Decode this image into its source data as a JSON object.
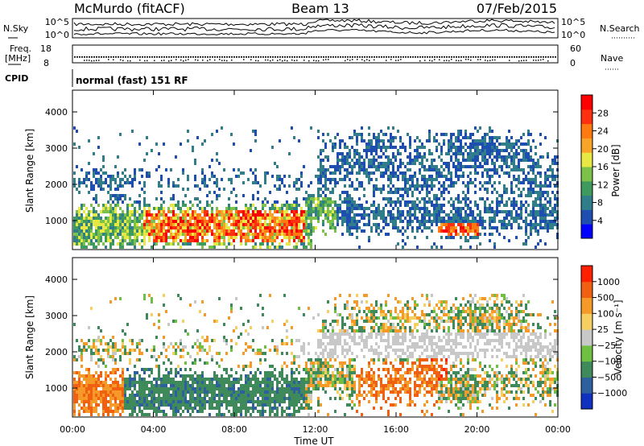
{
  "header": {
    "station": "McMurdo (fitACF)",
    "beam": "Beam 13",
    "date": "07/Feb/2015"
  },
  "strips": {
    "nsky_label": "N.Sky",
    "nsky_ticks": [
      "10^5",
      "10^0"
    ],
    "nsearch_label": "N.Search",
    "nsearch_ticks": [
      "10^5",
      "10^0"
    ],
    "freq_label": "Freq.",
    "freq_unit": "[MHz]",
    "freq_ticks": [
      "18",
      "8"
    ],
    "nave_label": "Nave",
    "nave_ticks": [
      "60",
      "0"
    ],
    "cpid_label": "CPID",
    "cpid_text": "normal (fast) 151 RF"
  },
  "chart_data": [
    {
      "type": "heatmap",
      "title": "",
      "xlabel": "Time UT",
      "ylabel": "Slant Range [km]",
      "xlim": [
        "00:00",
        "24:00"
      ],
      "ylim": [
        200,
        4600
      ],
      "x_ticks": [
        "00:00",
        "04:00",
        "08:00",
        "12:00",
        "16:00",
        "20:00",
        "00:00"
      ],
      "y_ticks": [
        1000,
        2000,
        3000,
        4000
      ],
      "colorbar": {
        "label": "Power [dB]",
        "ticks": [
          "28",
          "24",
          "20",
          "16",
          "12",
          "8",
          "4"
        ],
        "colors": [
          "#0000ff",
          "#1e4fb0",
          "#2f7e8a",
          "#3f9a5e",
          "#7cc24a",
          "#e8e845",
          "#f8a428",
          "#ff7a10",
          "#ff3010",
          "#ff0000"
        ]
      }
    },
    {
      "type": "heatmap",
      "title": "",
      "xlabel": "Time UT",
      "ylabel": "Slant Range [km]",
      "xlim": [
        "00:00",
        "24:00"
      ],
      "ylim": [
        200,
        4600
      ],
      "x_ticks": [
        "00:00",
        "04:00",
        "08:00",
        "12:00",
        "16:00",
        "20:00",
        "00:00"
      ],
      "y_ticks": [
        1000,
        2000,
        3000,
        4000
      ],
      "colorbar": {
        "label": "Velocity [m s⁻¹]",
        "ticks": [
          "1000",
          "500",
          "100",
          "25",
          "−25",
          "−100",
          "−500",
          "−1000"
        ],
        "colors": [
          "#1030c0",
          "#2e5f9e",
          "#3f8a5a",
          "#6fc040",
          "#c8c8c8",
          "#f5d060",
          "#f59a28",
          "#f06010",
          "#ff2000"
        ]
      }
    }
  ]
}
